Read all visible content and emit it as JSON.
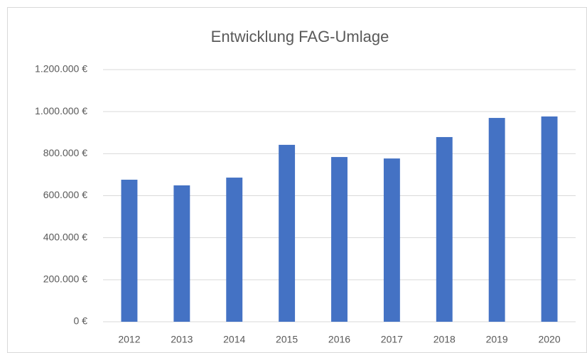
{
  "chart_data": {
    "type": "bar",
    "title": "Entwicklung FAG-Umlage",
    "categories": [
      "2012",
      "2013",
      "2014",
      "2015",
      "2016",
      "2017",
      "2018",
      "2019",
      "2020"
    ],
    "values": [
      676000,
      649000,
      686000,
      842000,
      784000,
      777000,
      879000,
      970000,
      977000
    ],
    "color": "#4472c4",
    "ylim": [
      0,
      1200000
    ],
    "yticks": [
      {
        "value": 0,
        "label": "0 €"
      },
      {
        "value": 200000,
        "label": "200.000 €"
      },
      {
        "value": 400000,
        "label": "400.000 €"
      },
      {
        "value": 600000,
        "label": "600.000 €"
      },
      {
        "value": 800000,
        "label": "800.000 €"
      },
      {
        "value": 1000000,
        "label": "1.000.000 €"
      },
      {
        "value": 1200000,
        "label": "1.200.000 €"
      }
    ],
    "grid": true
  }
}
